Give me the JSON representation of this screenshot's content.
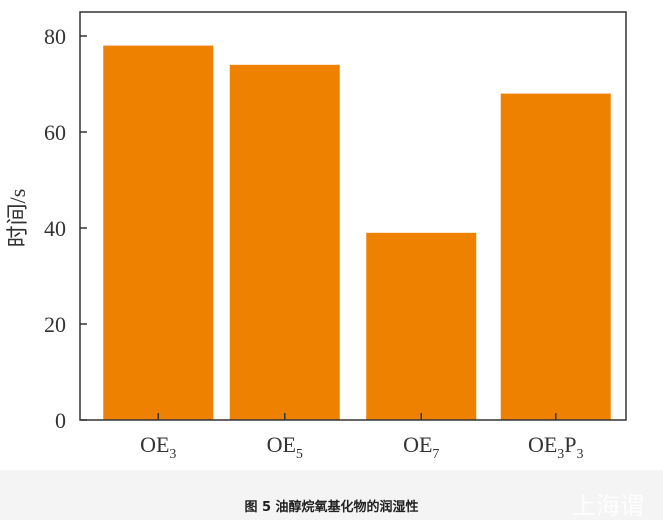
{
  "chart_data": {
    "type": "bar",
    "categories": [
      "OE3",
      "OE5",
      "OE7",
      "OE3P3"
    ],
    "values": [
      78,
      74,
      39,
      68
    ],
    "title": "",
    "xlabel": "",
    "ylabel": "时间/s",
    "ylim": [
      0,
      85
    ],
    "yticks": [
      0,
      20,
      40,
      60,
      80
    ],
    "bar_color": "#ee8200",
    "grid": false,
    "legend": "none"
  },
  "caption": "图 5   油醇烷氧基化物的润湿性",
  "watermark": "上海谓"
}
